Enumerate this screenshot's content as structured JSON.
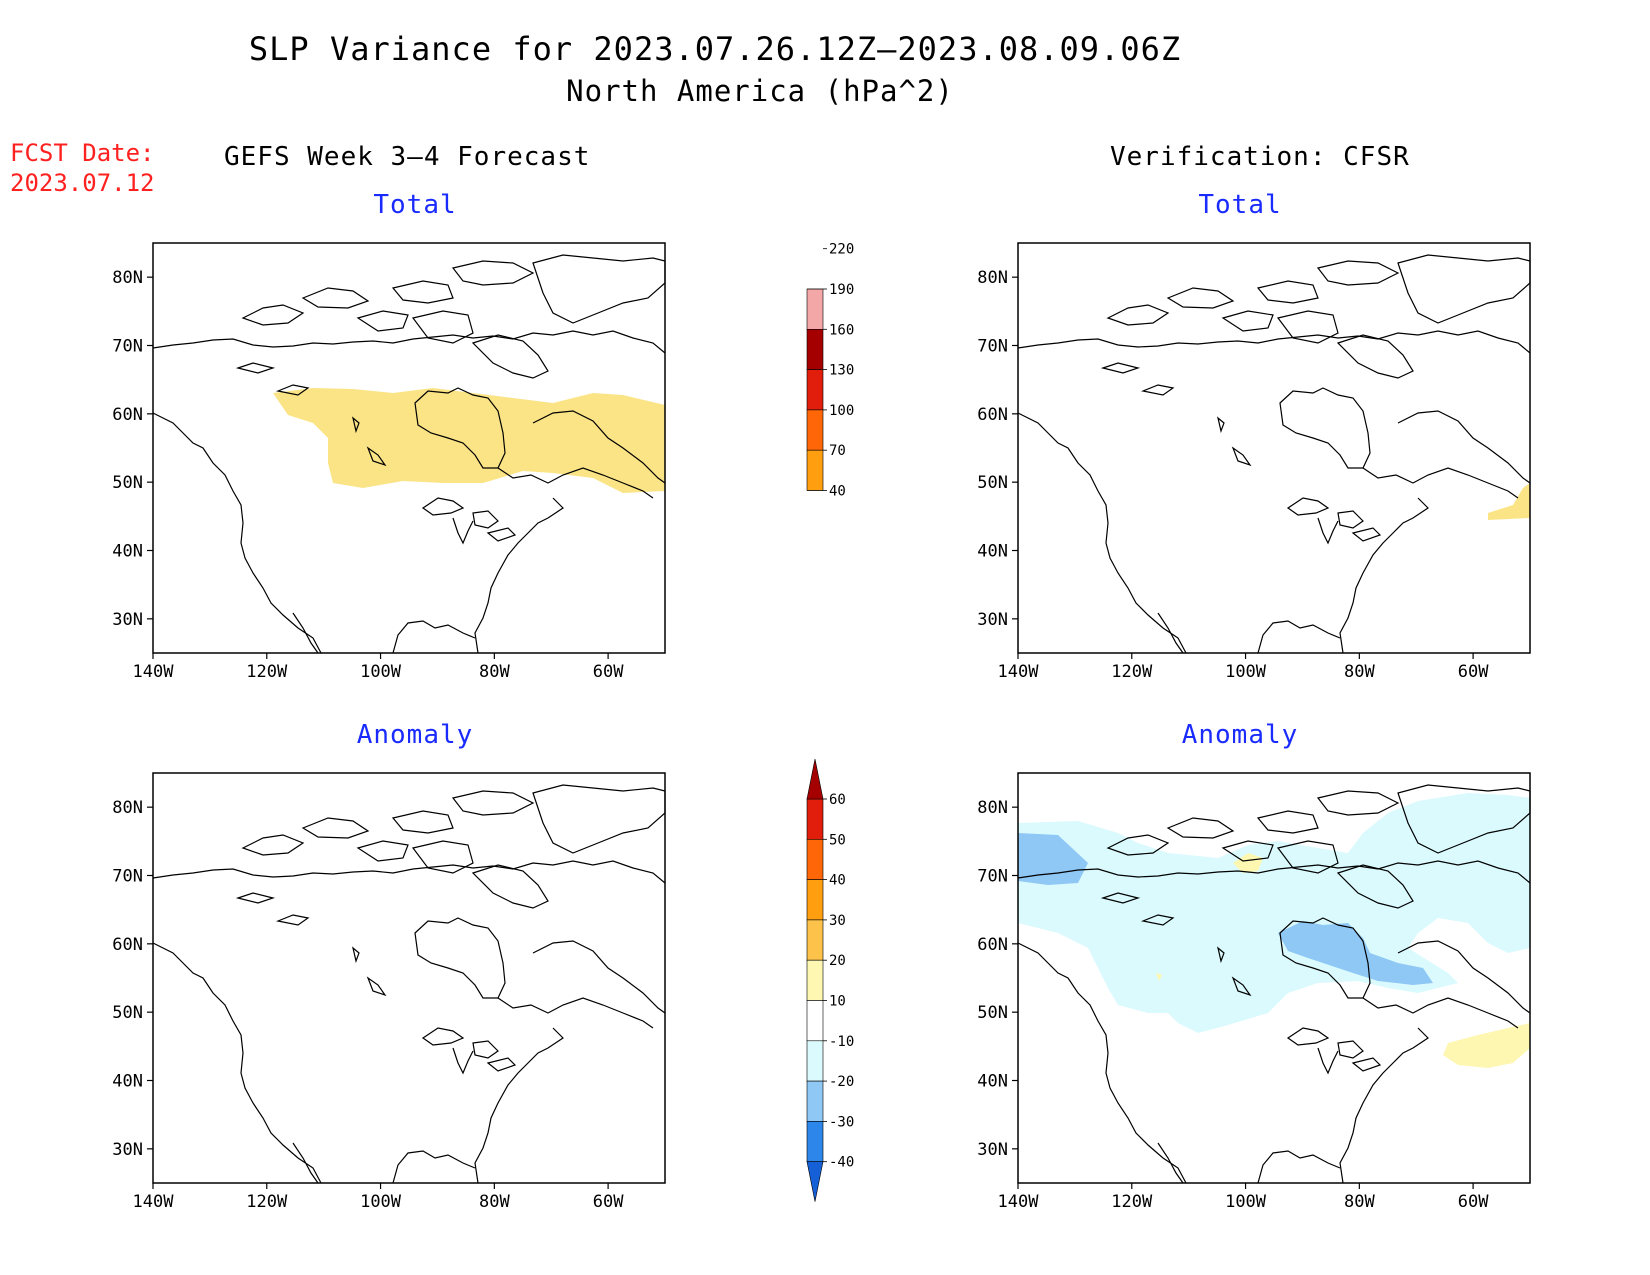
{
  "title": "SLP Variance for 2023.07.26.12Z–2023.08.09.06Z",
  "subtitle": "North America (hPa^2)",
  "fcst_label": "FCST Date:",
  "fcst_date": "2023.07.12",
  "left_header": "GEFS Week 3–4 Forecast",
  "right_header": "Verification: CFSR",
  "panel_titles": {
    "tl": "Total",
    "tr": "Total",
    "bl": "Anomaly",
    "br": "Anomaly"
  },
  "lat_labels": [
    "80N",
    "70N",
    "60N",
    "50N",
    "40N",
    "30N"
  ],
  "lat_values": [
    80,
    70,
    60,
    50,
    40,
    30
  ],
  "lon_labels": [
    "140W",
    "120W",
    "100W",
    "80W",
    "60W"
  ],
  "lon_values": [
    -140,
    -120,
    -100,
    -80,
    -60
  ],
  "map_extent": {
    "lon_min": -140,
    "lon_max": -50,
    "lat_min": 25,
    "lat_max": 85
  },
  "total_colorbar": {
    "levels": [
      "40",
      "70",
      "100",
      "130",
      "160",
      "190",
      "220"
    ],
    "colors": [
      "#fbe486",
      "#ff9f0f",
      "#ff6608",
      "#e11e0c",
      "#a50000",
      "#f4a7a7",
      "#fbe2e2"
    ]
  },
  "anomaly_colorbar": {
    "levels": [
      "-40",
      "-30",
      "-20",
      "-10",
      "10",
      "20",
      "30",
      "40",
      "50",
      "60"
    ],
    "colors": [
      "#1560d6",
      "#2d86ea",
      "#8fc7f5",
      "#dafafe",
      "#ffffff",
      "#fdf7b1",
      "#fdc24a",
      "#ff9f0f",
      "#ff6608",
      "#e11e0c",
      "#a50000"
    ]
  },
  "colors": {
    "red_text": "#ff2020",
    "blue_text": "#1a2bff"
  }
}
